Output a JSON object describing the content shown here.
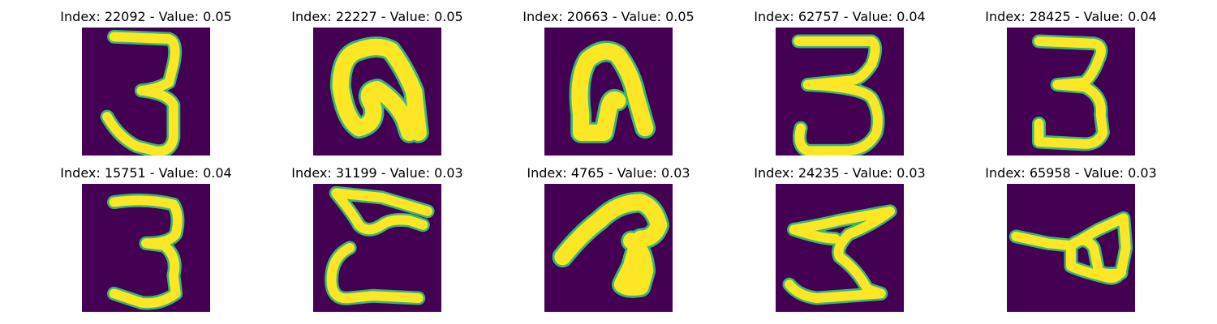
{
  "figure": {
    "background": "#ffffff",
    "image_background": "#440154",
    "stroke_color": "#fde725",
    "edge_color": "#35b779",
    "panels": [
      {
        "title": "Index: 22092 - Value: 0.05",
        "digit_shape": "3"
      },
      {
        "title": "Index: 22227 - Value: 0.05",
        "digit_shape": "curled arch"
      },
      {
        "title": "Index: 20663 - Value: 0.05",
        "digit_shape": "arch"
      },
      {
        "title": "Index: 62757 - Value: 0.04",
        "digit_shape": "3"
      },
      {
        "title": "Index: 28425 - Value: 0.04",
        "digit_shape": "3"
      },
      {
        "title": "Index: 15751 - Value: 0.04",
        "digit_shape": "3"
      },
      {
        "title": "Index: 31199 - Value: 0.03",
        "digit_shape": "rotated 3 (m-shape)"
      },
      {
        "title": "Index: 4765 - Value: 0.03",
        "digit_shape": "hook"
      },
      {
        "title": "Index: 24235 - Value: 0.03",
        "digit_shape": "zigzag"
      },
      {
        "title": "Index: 65958 - Value: 0.03",
        "digit_shape": "loop with tail"
      }
    ]
  }
}
